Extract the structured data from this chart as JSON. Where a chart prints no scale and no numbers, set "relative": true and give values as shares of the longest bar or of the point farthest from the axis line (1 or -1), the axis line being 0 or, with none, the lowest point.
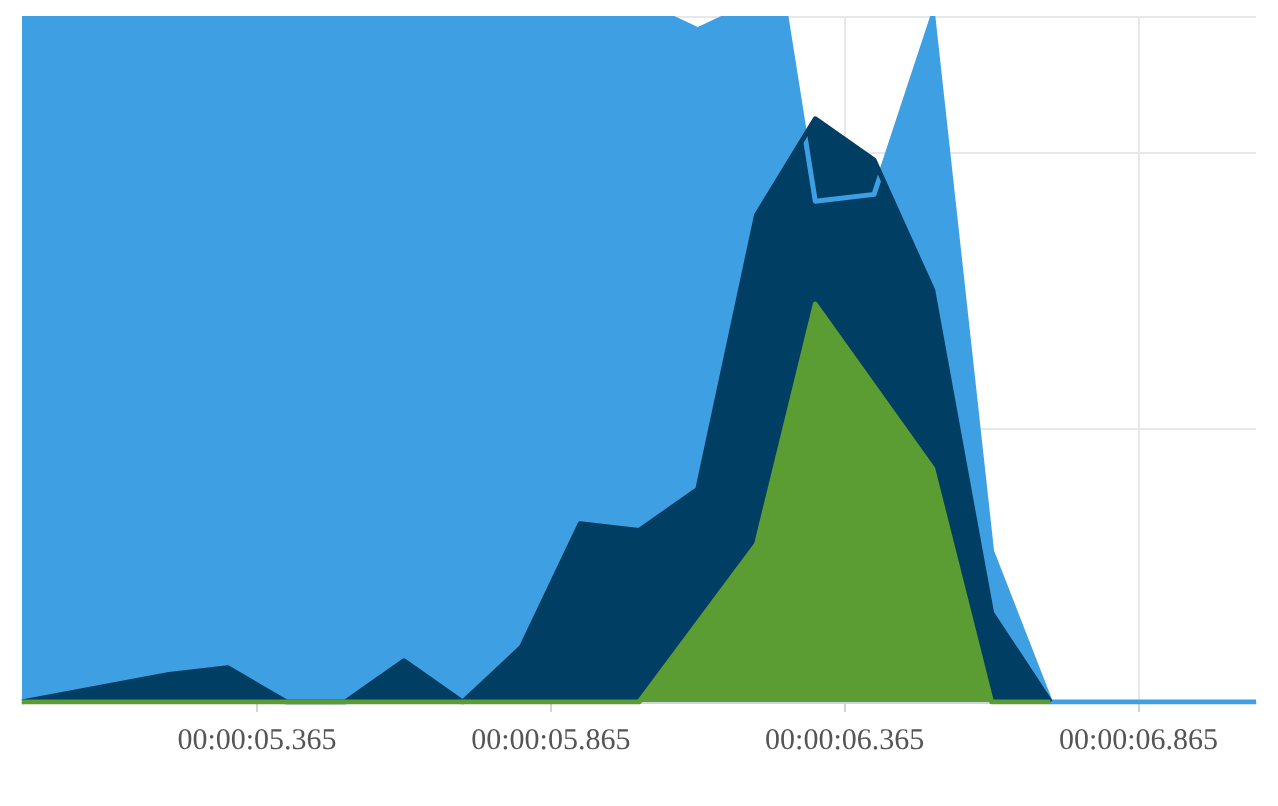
{
  "chart_data": {
    "type": "area",
    "relative": true,
    "grid": true,
    "marker": "none",
    "categories": [
      null,
      null,
      null,
      null,
      null,
      null,
      null,
      null,
      "00:00:05.365",
      null,
      null,
      null,
      null,
      null,
      null,
      null,
      null,
      null,
      "00:00:05.865",
      null,
      null,
      null,
      null,
      null,
      null,
      null,
      null,
      null,
      "00:00:06.365",
      null,
      null,
      null,
      null,
      null,
      null,
      null,
      null,
      null,
      "00:00:06.865",
      null,
      null,
      null,
      null
    ],
    "series": [
      {
        "color": "#3ea0e2",
        "values": [
          1,
          null,
          null,
          null,
          null,
          null,
          null,
          null,
          null,
          null,
          null,
          null,
          null,
          null,
          null,
          null,
          null,
          null,
          null,
          null,
          null,
          null,
          1,
          0.98,
          1,
          null,
          1,
          0.73,
          null,
          0.74,
          null,
          1,
          null,
          0.22,
          null,
          0,
          null,
          0,
          null,
          null,
          null,
          null,
          0
        ]
      },
      {
        "color": "#003f63",
        "values": [
          0,
          null,
          null,
          null,
          null,
          0.04,
          null,
          0.05,
          null,
          0,
          null,
          0,
          null,
          0.06,
          null,
          0,
          null,
          0.08,
          null,
          0.26,
          null,
          0.25,
          null,
          0.31,
          null,
          0.71,
          null,
          0.85,
          null,
          0.79,
          null,
          0.6,
          null,
          0.13,
          null,
          0,
          null,
          null,
          null,
          null,
          null,
          null,
          null
        ]
      },
      {
        "color": "#5b9d32",
        "values": [
          0,
          null,
          null,
          null,
          null,
          null,
          null,
          null,
          null,
          null,
          null,
          null,
          null,
          null,
          null,
          null,
          null,
          null,
          null,
          null,
          null,
          0,
          null,
          null,
          null,
          0.23,
          null,
          0.58,
          null,
          null,
          null,
          0.34,
          null,
          0,
          null,
          0,
          null,
          null,
          null,
          null,
          null,
          null,
          null
        ]
      }
    ]
  }
}
